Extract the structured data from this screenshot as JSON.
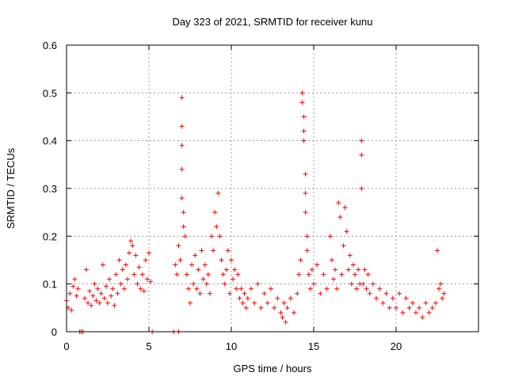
{
  "chart_data": {
    "type": "scatter",
    "title": "Day 323 of 2021, SRMTID for receiver kunu",
    "xlabel": "GPS time / hours",
    "ylabel": "SRMTID / TECUs",
    "xlim": [
      0,
      25
    ],
    "ylim": [
      0,
      0.6
    ],
    "x_ticks": [
      0,
      5,
      10,
      15,
      20
    ],
    "x_tick_labels": [
      "0",
      "5",
      "10",
      "15",
      "20"
    ],
    "y_ticks": [
      0,
      0.1,
      0.2,
      0.3,
      0.4,
      0.5,
      0.6
    ],
    "y_tick_labels": [
      "0",
      "0.1",
      "0.2",
      "0.3",
      "0.4",
      "0.5",
      "0.6"
    ],
    "grid": true,
    "marker": "plus",
    "color": "#ff0000",
    "series": [
      {
        "name": "SRMTID",
        "points": [
          [
            0.0,
            0.065
          ],
          [
            0.1,
            0.05
          ],
          [
            0.2,
            0.08
          ],
          [
            0.3,
            0.045
          ],
          [
            0.4,
            0.095
          ],
          [
            0.5,
            0.11
          ],
          [
            0.6,
            0.075
          ],
          [
            0.7,
            0.09
          ],
          [
            0.8,
            0.0
          ],
          [
            0.9,
            0.0
          ],
          [
            1.0,
            0.0
          ],
          [
            1.1,
            0.07
          ],
          [
            1.2,
            0.13
          ],
          [
            1.3,
            0.06
          ],
          [
            1.4,
            0.085
          ],
          [
            1.5,
            0.055
          ],
          [
            1.6,
            0.075
          ],
          [
            1.7,
            0.1
          ],
          [
            1.8,
            0.065
          ],
          [
            1.9,
            0.09
          ],
          [
            2.0,
            0.06
          ],
          [
            2.1,
            0.08
          ],
          [
            2.2,
            0.14
          ],
          [
            2.3,
            0.07
          ],
          [
            2.4,
            0.095
          ],
          [
            2.5,
            0.06
          ],
          [
            2.6,
            0.11
          ],
          [
            2.7,
            0.075
          ],
          [
            2.8,
            0.09
          ],
          [
            2.9,
            0.055
          ],
          [
            3.0,
            0.12
          ],
          [
            3.1,
            0.08
          ],
          [
            3.2,
            0.15
          ],
          [
            3.3,
            0.1
          ],
          [
            3.4,
            0.13
          ],
          [
            3.5,
            0.09
          ],
          [
            3.6,
            0.14
          ],
          [
            3.7,
            0.11
          ],
          [
            3.8,
            0.165
          ],
          [
            3.9,
            0.19
          ],
          [
            4.0,
            0.18
          ],
          [
            4.1,
            0.12
          ],
          [
            4.2,
            0.16
          ],
          [
            4.3,
            0.1
          ],
          [
            4.4,
            0.135
          ],
          [
            4.5,
            0.09
          ],
          [
            4.6,
            0.12
          ],
          [
            4.7,
            0.085
          ],
          [
            4.8,
            0.15
          ],
          [
            4.9,
            0.11
          ],
          [
            5.0,
            0.165
          ],
          [
            5.1,
            0.105
          ],
          [
            5.2,
            0.0
          ],
          [
            6.5,
            0.0
          ],
          [
            6.8,
            0.0
          ],
          [
            6.6,
            0.14
          ],
          [
            6.7,
            0.12
          ],
          [
            6.8,
            0.18
          ],
          [
            6.9,
            0.15
          ],
          [
            7.0,
            0.49
          ],
          [
            7.0,
            0.43
          ],
          [
            7.0,
            0.39
          ],
          [
            7.0,
            0.34
          ],
          [
            7.0,
            0.28
          ],
          [
            7.1,
            0.25
          ],
          [
            7.1,
            0.22
          ],
          [
            7.2,
            0.2
          ],
          [
            7.3,
            0.12
          ],
          [
            7.4,
            0.09
          ],
          [
            7.5,
            0.06
          ],
          [
            7.6,
            0.14
          ],
          [
            7.7,
            0.1
          ],
          [
            7.8,
            0.16
          ],
          [
            7.9,
            0.09
          ],
          [
            8.0,
            0.13
          ],
          [
            8.1,
            0.08
          ],
          [
            8.2,
            0.17
          ],
          [
            8.3,
            0.11
          ],
          [
            8.4,
            0.14
          ],
          [
            8.5,
            0.1
          ],
          [
            8.6,
            0.12
          ],
          [
            8.7,
            0.08
          ],
          [
            8.8,
            0.2
          ],
          [
            8.9,
            0.17
          ],
          [
            9.0,
            0.25
          ],
          [
            9.1,
            0.22
          ],
          [
            9.2,
            0.29
          ],
          [
            9.3,
            0.2
          ],
          [
            9.4,
            0.15
          ],
          [
            9.5,
            0.12
          ],
          [
            9.6,
            0.1
          ],
          [
            9.7,
            0.13
          ],
          [
            9.8,
            0.17
          ],
          [
            9.9,
            0.08
          ],
          [
            10.0,
            0.15
          ],
          [
            10.1,
            0.11
          ],
          [
            10.2,
            0.13
          ],
          [
            10.3,
            0.09
          ],
          [
            10.4,
            0.12
          ],
          [
            10.5,
            0.07
          ],
          [
            10.6,
            0.09
          ],
          [
            10.7,
            0.06
          ],
          [
            10.8,
            0.08
          ],
          [
            10.9,
            0.05
          ],
          [
            11.0,
            0.07
          ],
          [
            11.2,
            0.09
          ],
          [
            11.4,
            0.06
          ],
          [
            11.6,
            0.1
          ],
          [
            11.8,
            0.05
          ],
          [
            12.0,
            0.08
          ],
          [
            12.2,
            0.06
          ],
          [
            12.4,
            0.09
          ],
          [
            12.6,
            0.05
          ],
          [
            12.8,
            0.07
          ],
          [
            13.0,
            0.04
          ],
          [
            13.1,
            0.03
          ],
          [
            13.2,
            0.06
          ],
          [
            13.3,
            0.02
          ],
          [
            13.4,
            0.05
          ],
          [
            13.6,
            0.07
          ],
          [
            13.8,
            0.04
          ],
          [
            14.0,
            0.08
          ],
          [
            14.1,
            0.12
          ],
          [
            14.2,
            0.15
          ],
          [
            14.3,
            0.5
          ],
          [
            14.3,
            0.48
          ],
          [
            14.4,
            0.45
          ],
          [
            14.4,
            0.42
          ],
          [
            14.4,
            0.4
          ],
          [
            14.5,
            0.33
          ],
          [
            14.5,
            0.29
          ],
          [
            14.5,
            0.25
          ],
          [
            14.6,
            0.2
          ],
          [
            14.6,
            0.17
          ],
          [
            14.7,
            0.12
          ],
          [
            14.8,
            0.09
          ],
          [
            14.9,
            0.13
          ],
          [
            15.0,
            0.1
          ],
          [
            15.2,
            0.14
          ],
          [
            15.4,
            0.08
          ],
          [
            15.6,
            0.12
          ],
          [
            15.8,
            0.09
          ],
          [
            16.0,
            0.2
          ],
          [
            16.1,
            0.15
          ],
          [
            16.2,
            0.11
          ],
          [
            16.3,
            0.13
          ],
          [
            16.4,
            0.09
          ],
          [
            16.5,
            0.27
          ],
          [
            16.6,
            0.24
          ],
          [
            16.7,
            0.12
          ],
          [
            16.8,
            0.18
          ],
          [
            16.9,
            0.26
          ],
          [
            17.0,
            0.21
          ],
          [
            17.1,
            0.13
          ],
          [
            17.2,
            0.16
          ],
          [
            17.3,
            0.1
          ],
          [
            17.4,
            0.14
          ],
          [
            17.5,
            0.12
          ],
          [
            17.6,
            0.09
          ],
          [
            17.7,
            0.13
          ],
          [
            17.8,
            0.1
          ],
          [
            17.9,
            0.4
          ],
          [
            17.9,
            0.37
          ],
          [
            17.9,
            0.3
          ],
          [
            18.0,
            0.1
          ],
          [
            18.1,
            0.13
          ],
          [
            18.2,
            0.09
          ],
          [
            18.3,
            0.12
          ],
          [
            18.4,
            0.08
          ],
          [
            18.6,
            0.1
          ],
          [
            18.8,
            0.07
          ],
          [
            19.0,
            0.09
          ],
          [
            19.2,
            0.06
          ],
          [
            19.4,
            0.08
          ],
          [
            19.6,
            0.05
          ],
          [
            19.8,
            0.07
          ],
          [
            20.0,
            0.05
          ],
          [
            20.2,
            0.08
          ],
          [
            20.4,
            0.04
          ],
          [
            20.6,
            0.07
          ],
          [
            20.8,
            0.05
          ],
          [
            21.0,
            0.06
          ],
          [
            21.2,
            0.04
          ],
          [
            21.4,
            0.05
          ],
          [
            21.6,
            0.03
          ],
          [
            21.8,
            0.06
          ],
          [
            22.0,
            0.04
          ],
          [
            22.2,
            0.05
          ],
          [
            22.4,
            0.06
          ],
          [
            22.5,
            0.17
          ],
          [
            22.6,
            0.09
          ],
          [
            22.7,
            0.1
          ],
          [
            22.8,
            0.07
          ],
          [
            22.9,
            0.08
          ]
        ]
      }
    ]
  }
}
